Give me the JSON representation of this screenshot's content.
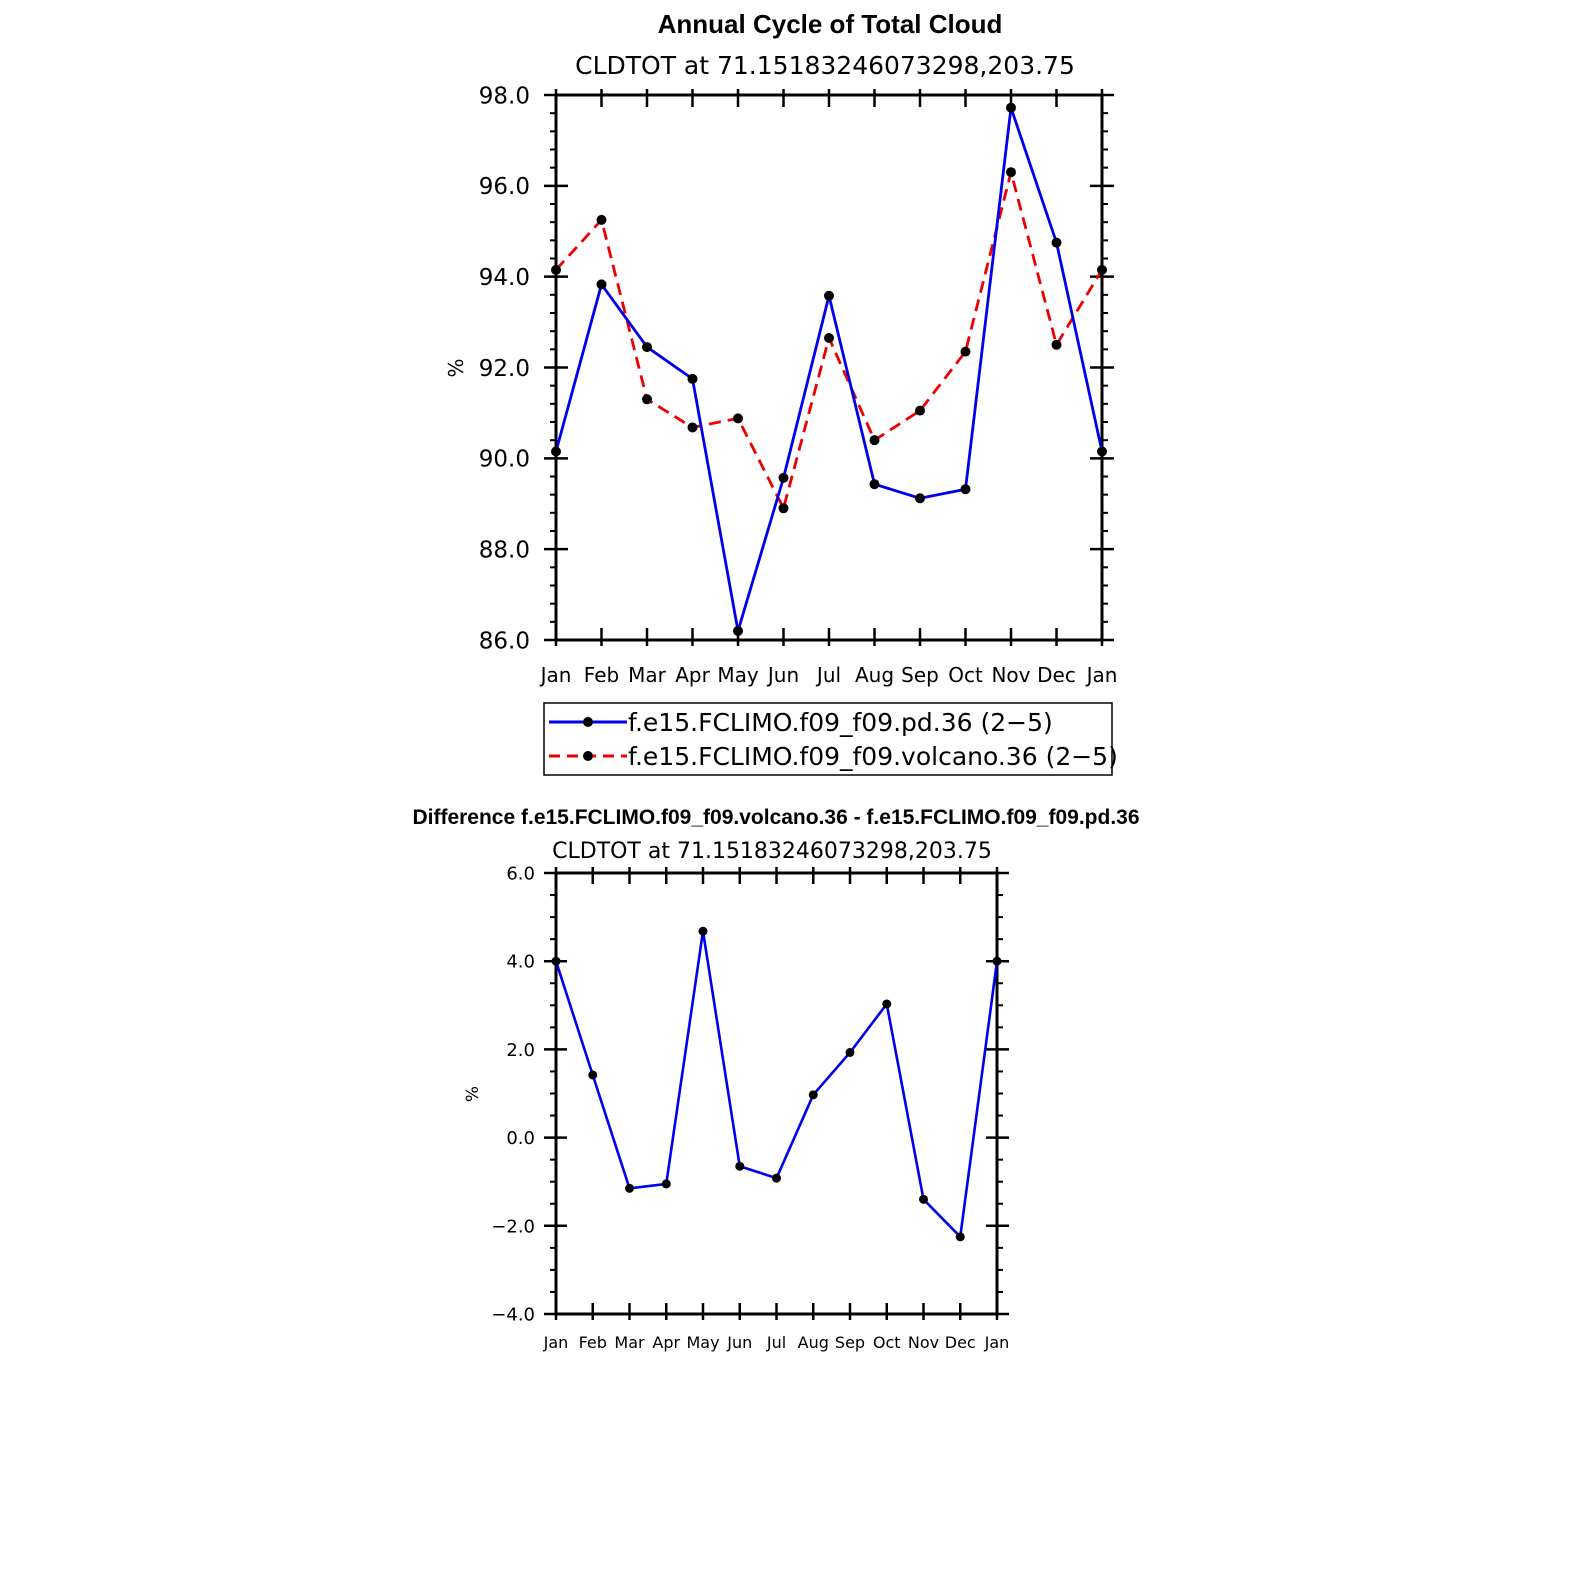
{
  "chart_data": [
    {
      "type": "line",
      "title": "Annual Cycle of Total Cloud",
      "subtitle": "CLDTOT at 71.15183246073298,203.75",
      "xlabel": "",
      "ylabel": "%",
      "categories": [
        "Jan",
        "Feb",
        "Mar",
        "Apr",
        "May",
        "Jun",
        "Jul",
        "Aug",
        "Sep",
        "Oct",
        "Nov",
        "Dec",
        "Jan"
      ],
      "ylim": [
        86.0,
        98.0
      ],
      "yticks": [
        86.0,
        88.0,
        90.0,
        92.0,
        94.0,
        96.0,
        98.0
      ],
      "ytick_labels": [
        "86.0",
        "88.0",
        "90.0",
        "92.0",
        "94.0",
        "96.0",
        "98.0"
      ],
      "legend_position": "bottom",
      "series": [
        {
          "name": "f.e15.FCLIMO.f09_f09.pd.36 (2−5)",
          "color": "#0000ee",
          "dash": "solid",
          "values": [
            90.15,
            93.83,
            92.45,
            91.75,
            86.2,
            89.57,
            93.58,
            89.43,
            89.12,
            89.32,
            97.72,
            94.75,
            90.15
          ]
        },
        {
          "name": "f.e15.FCLIMO.f09_f09.volcano.36 (2−5)",
          "color": "#ee0000",
          "dash": "dashed",
          "values": [
            94.15,
            95.25,
            91.3,
            90.68,
            90.88,
            88.9,
            92.65,
            90.4,
            91.05,
            92.35,
            96.3,
            92.5,
            94.15
          ]
        }
      ]
    },
    {
      "type": "line",
      "title": "Difference f.e15.FCLIMO.f09_f09.volcano.36 - f.e15.FCLIMO.f09_f09.pd.36",
      "subtitle": "CLDTOT at 71.15183246073298,203.75",
      "xlabel": "",
      "ylabel": "%",
      "categories": [
        "Jan",
        "Feb",
        "Mar",
        "Apr",
        "May",
        "Jun",
        "Jul",
        "Aug",
        "Sep",
        "Oct",
        "Nov",
        "Dec",
        "Jan"
      ],
      "ylim": [
        -4.0,
        6.0
      ],
      "yticks": [
        -4.0,
        -2.0,
        0.0,
        2.0,
        4.0,
        6.0
      ],
      "ytick_labels": [
        "−4.0",
        "−2.0",
        "0.0",
        "2.0",
        "4.0",
        "6.0"
      ],
      "series": [
        {
          "name": "difference",
          "color": "#0000ee",
          "dash": "solid",
          "values": [
            4.0,
            1.42,
            -1.15,
            -1.05,
            4.68,
            -0.65,
            -0.92,
            0.97,
            1.93,
            3.03,
            -1.4,
            -2.25,
            4.0
          ]
        }
      ]
    }
  ]
}
